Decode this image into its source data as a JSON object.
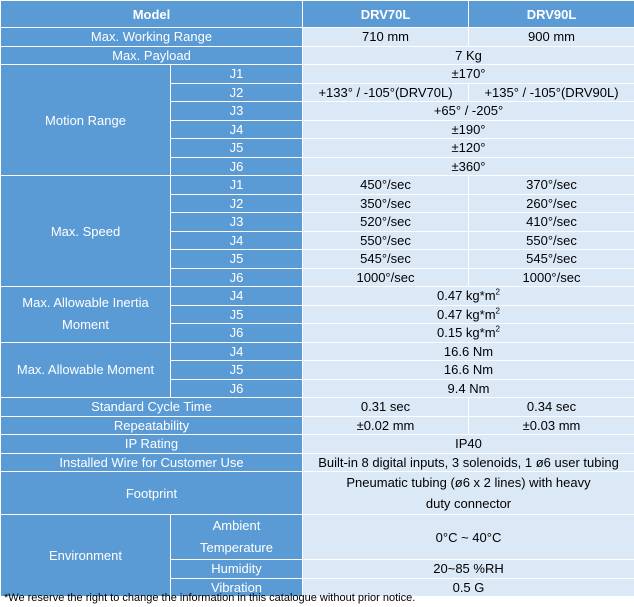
{
  "header": {
    "model": "Model",
    "m1": "DRV70L",
    "m2": "DRV90L"
  },
  "working_range": {
    "label": "Max. Working Range",
    "v1": "710 mm",
    "v2": "900 mm"
  },
  "payload": {
    "label": "Max. Payload",
    "v": "7 Kg"
  },
  "motion": {
    "label": "Motion Range",
    "j1": {
      "j": "J1",
      "v": "±170°"
    },
    "j2": {
      "j": "J2",
      "v1": "+133° / -105°(DRV70L)",
      "v2": "+135° / -105°(DRV90L)"
    },
    "j3": {
      "j": "J3",
      "v": "+65° / -205°"
    },
    "j4": {
      "j": "J4",
      "v": "±190°"
    },
    "j5": {
      "j": "J5",
      "v": "±120°"
    },
    "j6": {
      "j": "J6",
      "v": "±360°"
    }
  },
  "speed": {
    "label": "Max. Speed",
    "rows": [
      {
        "j": "J1",
        "v1": "450°/sec",
        "v2": "370°/sec"
      },
      {
        "j": "J2",
        "v1": "350°/sec",
        "v2": "260°/sec"
      },
      {
        "j": "J3",
        "v1": "520°/sec",
        "v2": "410°/sec"
      },
      {
        "j": "J4",
        "v1": "550°/sec",
        "v2": "550°/sec"
      },
      {
        "j": "J5",
        "v1": "545°/sec",
        "v2": "545°/sec"
      },
      {
        "j": "J6",
        "v1": "1000°/sec",
        "v2": "1000°/sec"
      }
    ]
  },
  "inertia": {
    "label1": "Max. Allowable Inertia",
    "label2": "Moment",
    "rows": [
      {
        "j": "J4",
        "v": "0.47 kg*m",
        "sup": "2"
      },
      {
        "j": "J5",
        "v": "0.47 kg*m",
        "sup": "2"
      },
      {
        "j": "J6",
        "v": "0.15 kg*m",
        "sup": "2"
      }
    ]
  },
  "moment": {
    "label": "Max. Allowable Moment",
    "rows": [
      {
        "j": "J4",
        "v": "16.6 Nm"
      },
      {
        "j": "J5",
        "v": "16.6 Nm"
      },
      {
        "j": "J6",
        "v": "9.4 Nm"
      }
    ]
  },
  "cycle": {
    "label": "Standard Cycle Time",
    "v1": "0.31 sec",
    "v2": "0.34 sec"
  },
  "repeat": {
    "label": "Repeatability",
    "v1": "±0.02 mm",
    "v2": "±0.03 mm"
  },
  "ip": {
    "label": "IP Rating",
    "v": "IP40"
  },
  "wire": {
    "label": "Installed Wire for Customer Use",
    "v": "Built-in 8 digital inputs, 3 solenoids, 1 ø6 user tubing"
  },
  "footprint": {
    "label": "Footprint",
    "v": "Pneumatic tubing (ø6 x 2 lines) with heavy duty connector"
  },
  "env": {
    "label": "Environment",
    "ambient1": "Ambient",
    "ambient2": "Temperature",
    "ambient_v": "0°C ~ 40°C",
    "humidity": "Humidity",
    "humidity_v": "20~85 %RH",
    "vibration": "Vibration",
    "vibration_v": "0.5 G"
  },
  "footnote": "*We reserve the right to change the information in this catalogue without prior notice."
}
